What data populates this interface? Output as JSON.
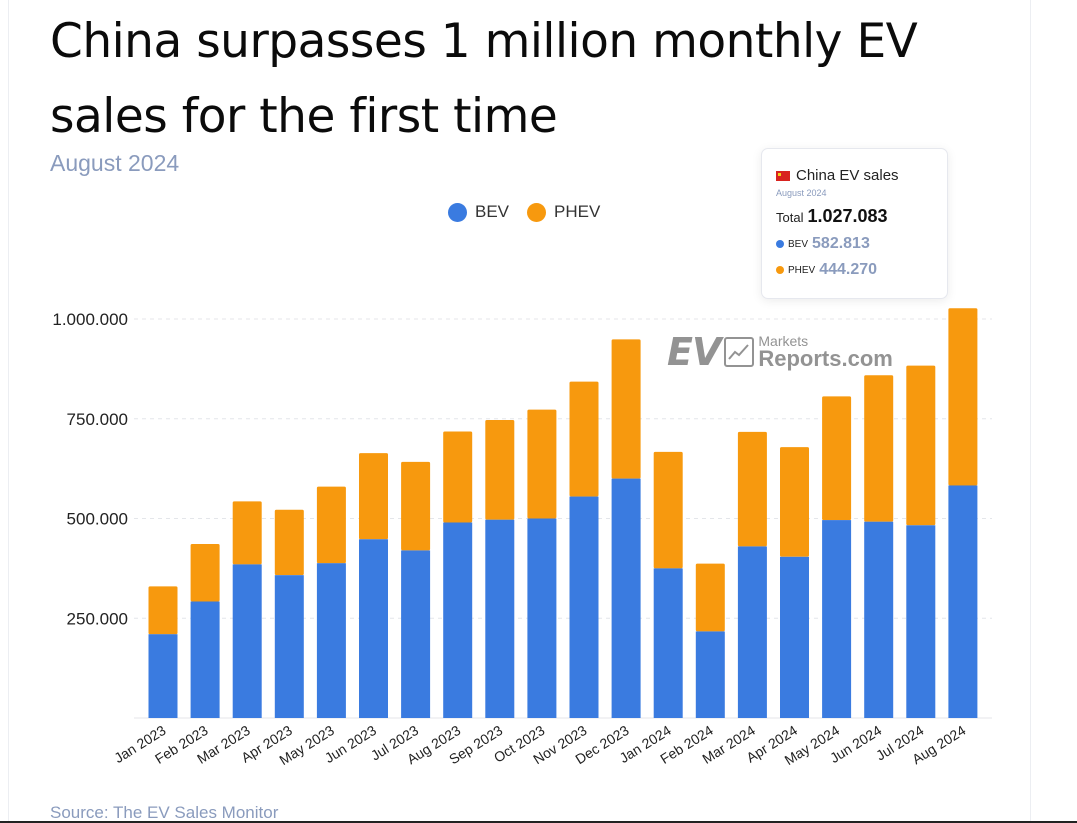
{
  "header": {
    "title": "China surpasses 1 million monthly EV sales for the first time",
    "subtitle": "August 2024"
  },
  "source": "Source: The EV Sales Monitor",
  "watermark": {
    "ev": "EV",
    "markets": "Markets",
    "reports": "Reports.com"
  },
  "tooltip": {
    "title": "China EV sales",
    "date": "August 2024",
    "total_label": "Total",
    "total_value": "1.027.083",
    "bev_label": "BEV",
    "bev_value": "582.813",
    "phev_label": "PHEV",
    "phev_value": "444.270"
  },
  "colors": {
    "bev": "#3a7be0",
    "phev": "#f7990e",
    "grid": "#e4e6ea",
    "text": "#222222"
  },
  "chart_data": {
    "type": "bar",
    "stacked": true,
    "categories": [
      "Jan 2023",
      "Feb 2023",
      "Mar 2023",
      "Apr 2023",
      "May 2023",
      "Jun 2023",
      "Jul 2023",
      "Aug 2023",
      "Sep 2023",
      "Oct 2023",
      "Nov 2023",
      "Dec 2023",
      "Jan 2024",
      "Feb 2024",
      "Mar 2024",
      "Apr 2024",
      "May 2024",
      "Jun 2024",
      "Jul 2024",
      "Aug 2024"
    ],
    "series": [
      {
        "name": "BEV",
        "values": [
          210000,
          292000,
          385000,
          358000,
          388000,
          448000,
          420000,
          490000,
          497000,
          500000,
          555000,
          600000,
          375000,
          217000,
          430000,
          404000,
          496000,
          492000,
          483000,
          582813
        ]
      },
      {
        "name": "PHEV",
        "values": [
          120000,
          144000,
          158000,
          164000,
          192000,
          216000,
          222000,
          228000,
          250000,
          273000,
          288000,
          349000,
          292000,
          170000,
          287000,
          275000,
          310000,
          367000,
          400000,
          444270
        ]
      }
    ],
    "yticks": [
      250000,
      500000,
      750000,
      1000000
    ],
    "ytick_labels": [
      "250.000",
      "500.000",
      "750.000",
      "1.000.000"
    ],
    "ylim": [
      0,
      1000000
    ],
    "grid": true,
    "legend_placement": "top-center"
  }
}
